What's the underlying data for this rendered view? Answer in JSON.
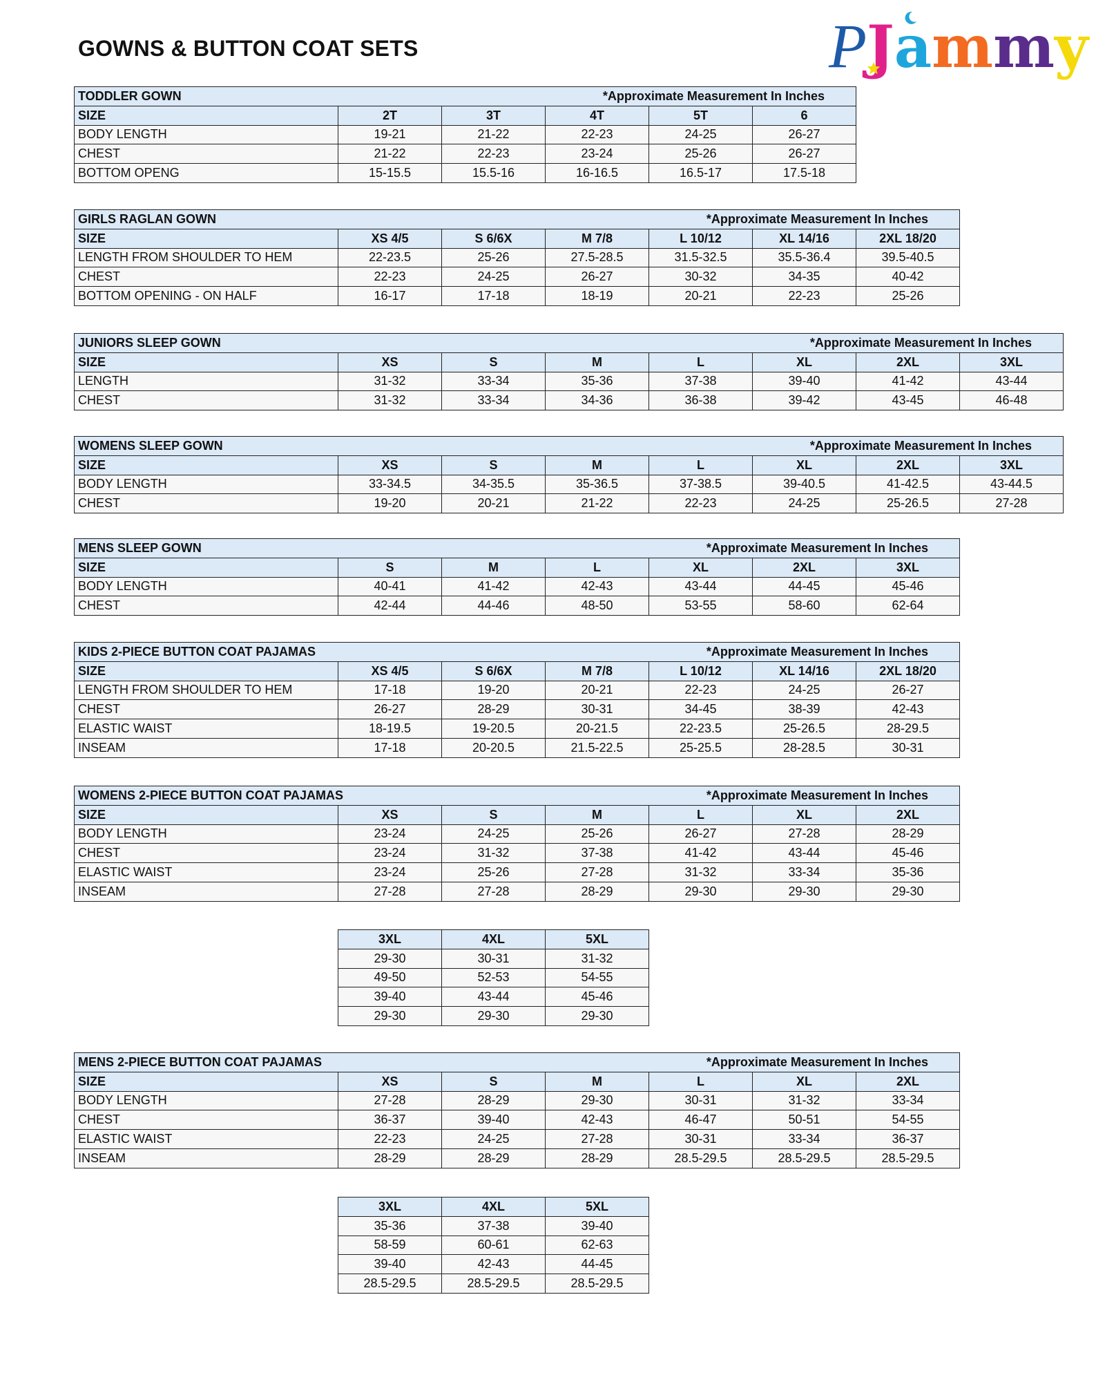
{
  "page_title": "GOWNS & BUTTON COAT SETS",
  "logo": {
    "text": "PJammy",
    "colors": {
      "P": "#1e5aa8",
      "J": "#e0218a",
      "a": "#1ea6dc",
      "m1": "#f26b21",
      "m2": "#5a2d8c",
      "y": "#f5d90a"
    }
  },
  "colors": {
    "header_bg": "#dce9f7",
    "row_bg": "#f7f7f7",
    "border": "#222222"
  },
  "tables": [
    {
      "title": "TODDLER GOWN",
      "note": "*Approximate Measurement In Inches",
      "headers": [
        "SIZE",
        "2T",
        "3T",
        "4T",
        "5T",
        "6"
      ],
      "rows": [
        [
          "BODY LENGTH",
          "19-21",
          "21-22",
          "22-23",
          "24-25",
          "26-27"
        ],
        [
          "CHEST",
          "21-22",
          "22-23",
          "23-24",
          "25-26",
          "26-27"
        ],
        [
          "BOTTOM OPENG",
          "15-15.5",
          "15.5-16",
          "16-16.5",
          "16.5-17",
          "17.5-18"
        ]
      ]
    },
    {
      "title": "GIRLS RAGLAN GOWN",
      "note": "*Approximate Measurement In Inches",
      "headers": [
        "SIZE",
        "XS 4/5",
        "S 6/6X",
        "M 7/8",
        "L 10/12",
        "XL 14/16",
        "2XL 18/20"
      ],
      "rows": [
        [
          "LENGTH FROM SHOULDER TO HEM",
          "22-23.5",
          "25-26",
          "27.5-28.5",
          "31.5-32.5",
          "35.5-36.4",
          "39.5-40.5"
        ],
        [
          "CHEST",
          "22-23",
          "24-25",
          "26-27",
          "30-32",
          "34-35",
          "40-42"
        ],
        [
          "BOTTOM OPENING - ON HALF",
          "16-17",
          "17-18",
          "18-19",
          "20-21",
          "22-23",
          "25-26"
        ]
      ]
    },
    {
      "title": "JUNIORS SLEEP GOWN",
      "note": "*Approximate Measurement In Inches",
      "headers": [
        "SIZE",
        "XS",
        "S",
        "M",
        "L",
        "XL",
        "2XL",
        "3XL"
      ],
      "rows": [
        [
          "LENGTH",
          "31-32",
          "33-34",
          "35-36",
          "37-38",
          "39-40",
          "41-42",
          "43-44"
        ],
        [
          "CHEST",
          "31-32",
          "33-34",
          "34-36",
          "36-38",
          "39-42",
          "43-45",
          "46-48"
        ]
      ]
    },
    {
      "title": "WOMENS SLEEP GOWN",
      "note": "*Approximate Measurement In Inches",
      "headers": [
        "SIZE",
        "XS",
        "S",
        "M",
        "L",
        "XL",
        "2XL",
        "3XL"
      ],
      "rows": [
        [
          "BODY LENGTH",
          "33-34.5",
          "34-35.5",
          "35-36.5",
          "37-38.5",
          "39-40.5",
          "41-42.5",
          "43-44.5"
        ],
        [
          "CHEST",
          "19-20",
          "20-21",
          "21-22",
          "22-23",
          "24-25",
          "25-26.5",
          "27-28"
        ]
      ]
    },
    {
      "title": "MENS SLEEP GOWN",
      "note": "*Approximate Measurement In Inches",
      "headers": [
        "SIZE",
        "S",
        "M",
        "L",
        "XL",
        "2XL",
        "3XL"
      ],
      "rows": [
        [
          "BODY LENGTH",
          "40-41",
          "41-42",
          "42-43",
          "43-44",
          "44-45",
          "45-46"
        ],
        [
          "CHEST",
          "42-44",
          "44-46",
          "48-50",
          "53-55",
          "58-60",
          "62-64"
        ]
      ]
    },
    {
      "title": "KIDS 2-PIECE BUTTON COAT PAJAMAS",
      "note": "*Approximate Measurement In Inches",
      "headers": [
        "SIZE",
        "XS 4/5",
        "S 6/6X",
        "M 7/8",
        "L 10/12",
        "XL 14/16",
        "2XL 18/20"
      ],
      "rows": [
        [
          "LENGTH FROM SHOULDER TO HEM",
          "17-18",
          "19-20",
          "20-21",
          "22-23",
          "24-25",
          "26-27"
        ],
        [
          "CHEST",
          "26-27",
          "28-29",
          "30-31",
          "34-45",
          "38-39",
          "42-43"
        ],
        [
          "ELASTIC WAIST",
          "18-19.5",
          "19-20.5",
          "20-21.5",
          "22-23.5",
          "25-26.5",
          "28-29.5"
        ],
        [
          "INSEAM",
          "17-18",
          "20-20.5",
          "21.5-22.5",
          "25-25.5",
          "28-28.5",
          "30-31"
        ]
      ]
    },
    {
      "title": "WOMENS 2-PIECE BUTTON COAT PAJAMAS",
      "note": "*Approximate Measurement In Inches",
      "headers": [
        "SIZE",
        "XS",
        "S",
        "M",
        "L",
        "XL",
        "2XL"
      ],
      "rows": [
        [
          "BODY LENGTH",
          "23-24",
          "24-25",
          "25-26",
          "26-27",
          "27-28",
          "28-29"
        ],
        [
          "CHEST",
          "23-24",
          "31-32",
          "37-38",
          "41-42",
          "43-44",
          "45-46"
        ],
        [
          "ELASTIC WAIST",
          "23-24",
          "25-26",
          "27-28",
          "31-32",
          "33-34",
          "35-36"
        ],
        [
          "INSEAM",
          "27-28",
          "27-28",
          "28-29",
          "29-30",
          "29-30",
          "29-30"
        ]
      ],
      "extension": {
        "headers": [
          "3XL",
          "4XL",
          "5XL"
        ],
        "rows": [
          [
            "29-30",
            "30-31",
            "31-32"
          ],
          [
            "49-50",
            "52-53",
            "54-55"
          ],
          [
            "39-40",
            "43-44",
            "45-46"
          ],
          [
            "29-30",
            "29-30",
            "29-30"
          ]
        ]
      }
    },
    {
      "title": "MENS 2-PIECE BUTTON COAT PAJAMAS",
      "note": "*Approximate Measurement In Inches",
      "headers": [
        "SIZE",
        "XS",
        "S",
        "M",
        "L",
        "XL",
        "2XL"
      ],
      "rows": [
        [
          "BODY LENGTH",
          "27-28",
          "28-29",
          "29-30",
          "30-31",
          "31-32",
          "33-34"
        ],
        [
          "CHEST",
          "36-37",
          "39-40",
          "42-43",
          "46-47",
          "50-51",
          "54-55"
        ],
        [
          "ELASTIC WAIST",
          "22-23",
          "24-25",
          "27-28",
          "30-31",
          "33-34",
          "36-37"
        ],
        [
          "INSEAM",
          "28-29",
          "28-29",
          "28-29",
          "28.5-29.5",
          "28.5-29.5",
          "28.5-29.5"
        ]
      ],
      "extension": {
        "headers": [
          "3XL",
          "4XL",
          "5XL"
        ],
        "rows": [
          [
            "35-36",
            "37-38",
            "39-40"
          ],
          [
            "58-59",
            "60-61",
            "62-63"
          ],
          [
            "39-40",
            "42-43",
            "44-45"
          ],
          [
            "28.5-29.5",
            "28.5-29.5",
            "28.5-29.5"
          ]
        ]
      }
    }
  ]
}
